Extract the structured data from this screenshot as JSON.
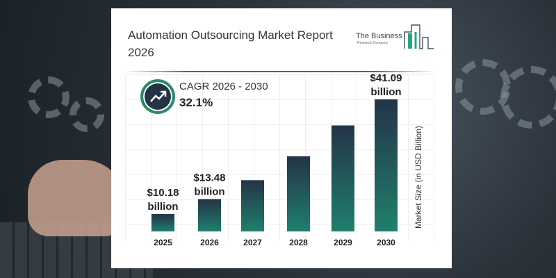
{
  "header": {
    "title": "Automation Outsourcing Market Report 2026",
    "logo_line1": "The Business",
    "logo_line2": "Research Company"
  },
  "cagr": {
    "label": "CAGR 2026 - 2030",
    "value": "32.1%",
    "icon": "trend-up-arrow-icon"
  },
  "colors": {
    "bar_top": "#243447",
    "bar_bottom": "#1f7f6c",
    "accent": "#2a8a70"
  },
  "chart_data": {
    "type": "bar",
    "title": "",
    "categories": [
      "2025",
      "2026",
      "2027",
      "2028",
      "2029",
      "2030"
    ],
    "values": [
      10.18,
      13.48,
      17.81,
      23.52,
      31.07,
      41.09
    ],
    "data_labels": [
      {
        "index": 0,
        "value": "$10.18",
        "unit": "billion"
      },
      {
        "index": 1,
        "value": "$13.48",
        "unit": "billion"
      },
      {
        "index": 5,
        "value": "$41.09",
        "unit": "billion"
      }
    ],
    "xlabel": "",
    "ylabel": "Market Size (in USD Billion)",
    "grid": true
  }
}
